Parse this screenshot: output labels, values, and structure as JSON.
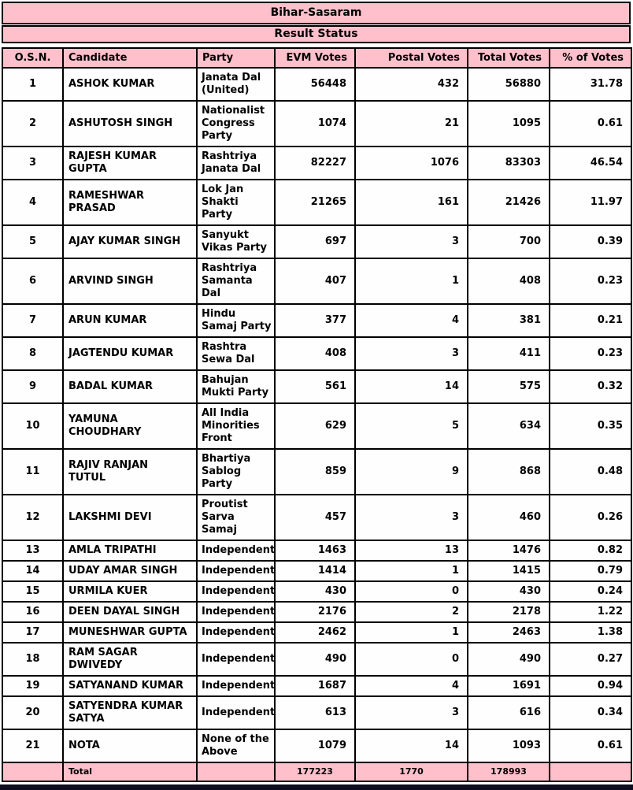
{
  "page": {
    "title": "Bihar-Sasaram",
    "subtitle": "Result Status"
  },
  "table": {
    "columns": [
      "O.S.N.",
      "Candidate",
      "Party",
      "EVM Votes",
      "Postal Votes",
      "Total Votes",
      "% of Votes"
    ],
    "rows": [
      {
        "osn": "1",
        "candidate": "ASHOK KUMAR",
        "party": "Janata Dal (United)",
        "evm": "56448",
        "postal": "432",
        "total": "56880",
        "pct": "31.78"
      },
      {
        "osn": "2",
        "candidate": "ASHUTOSH SINGH",
        "party": "Nationalist Congress Party",
        "evm": "1074",
        "postal": "21",
        "total": "1095",
        "pct": "0.61"
      },
      {
        "osn": "3",
        "candidate": "RAJESH KUMAR GUPTA",
        "party": "Rashtriya Janata Dal",
        "evm": "82227",
        "postal": "1076",
        "total": "83303",
        "pct": "46.54"
      },
      {
        "osn": "4",
        "candidate": "RAMESHWAR PRASAD",
        "party": "Lok Jan Shakti Party",
        "evm": "21265",
        "postal": "161",
        "total": "21426",
        "pct": "11.97"
      },
      {
        "osn": "5",
        "candidate": "AJAY KUMAR SINGH",
        "party": "Sanyukt Vikas Party",
        "evm": "697",
        "postal": "3",
        "total": "700",
        "pct": "0.39"
      },
      {
        "osn": "6",
        "candidate": "ARVIND SINGH",
        "party": "Rashtriya Samanta Dal",
        "evm": "407",
        "postal": "1",
        "total": "408",
        "pct": "0.23"
      },
      {
        "osn": "7",
        "candidate": "ARUN KUMAR",
        "party": "Hindu Samaj Party",
        "evm": "377",
        "postal": "4",
        "total": "381",
        "pct": "0.21"
      },
      {
        "osn": "8",
        "candidate": "JAGTENDU KUMAR",
        "party": "Rashtra Sewa Dal",
        "evm": "408",
        "postal": "3",
        "total": "411",
        "pct": "0.23"
      },
      {
        "osn": "9",
        "candidate": "BADAL KUMAR",
        "party": "Bahujan Mukti Party",
        "evm": "561",
        "postal": "14",
        "total": "575",
        "pct": "0.32"
      },
      {
        "osn": "10",
        "candidate": "YAMUNA CHOUDHARY",
        "party": "All India Minorities Front",
        "evm": "629",
        "postal": "5",
        "total": "634",
        "pct": "0.35"
      },
      {
        "osn": "11",
        "candidate": "RAJIV RANJAN TUTUL",
        "party": "Bhartiya Sablog Party",
        "evm": "859",
        "postal": "9",
        "total": "868",
        "pct": "0.48"
      },
      {
        "osn": "12",
        "candidate": "LAKSHMI DEVI",
        "party": "Proutist Sarva Samaj",
        "evm": "457",
        "postal": "3",
        "total": "460",
        "pct": "0.26"
      },
      {
        "osn": "13",
        "candidate": "AMLA TRIPATHI",
        "party": "Independent",
        "evm": "1463",
        "postal": "13",
        "total": "1476",
        "pct": "0.82"
      },
      {
        "osn": "14",
        "candidate": "UDAY AMAR SINGH",
        "party": "Independent",
        "evm": "1414",
        "postal": "1",
        "total": "1415",
        "pct": "0.79"
      },
      {
        "osn": "15",
        "candidate": "URMILA KUER",
        "party": "Independent",
        "evm": "430",
        "postal": "0",
        "total": "430",
        "pct": "0.24"
      },
      {
        "osn": "16",
        "candidate": "DEEN DAYAL SINGH",
        "party": "Independent",
        "evm": "2176",
        "postal": "2",
        "total": "2178",
        "pct": "1.22"
      },
      {
        "osn": "17",
        "candidate": "MUNESHWAR GUPTA",
        "party": "Independent",
        "evm": "2462",
        "postal": "1",
        "total": "2463",
        "pct": "1.38"
      },
      {
        "osn": "18",
        "candidate": "RAM SAGAR DWIVEDY",
        "party": "Independent",
        "evm": "490",
        "postal": "0",
        "total": "490",
        "pct": "0.27"
      },
      {
        "osn": "19",
        "candidate": "SATYANAND KUMAR",
        "party": "Independent",
        "evm": "1687",
        "postal": "4",
        "total": "1691",
        "pct": "0.94"
      },
      {
        "osn": "20",
        "candidate": "SATYENDRA KUMAR SATYA",
        "party": "Independent",
        "evm": "613",
        "postal": "3",
        "total": "616",
        "pct": "0.34"
      },
      {
        "osn": "21",
        "candidate": "NOTA",
        "party": "None of the Above",
        "evm": "1079",
        "postal": "14",
        "total": "1093",
        "pct": "0.61"
      }
    ],
    "total": {
      "label": "Total",
      "evm": "177223",
      "postal": "1770",
      "total": "178993"
    }
  },
  "colors": {
    "header_pink": "#ffc0cb",
    "row_background": "#fefefe",
    "border": "#000000",
    "bottom_bar": "#0d0d1f"
  }
}
